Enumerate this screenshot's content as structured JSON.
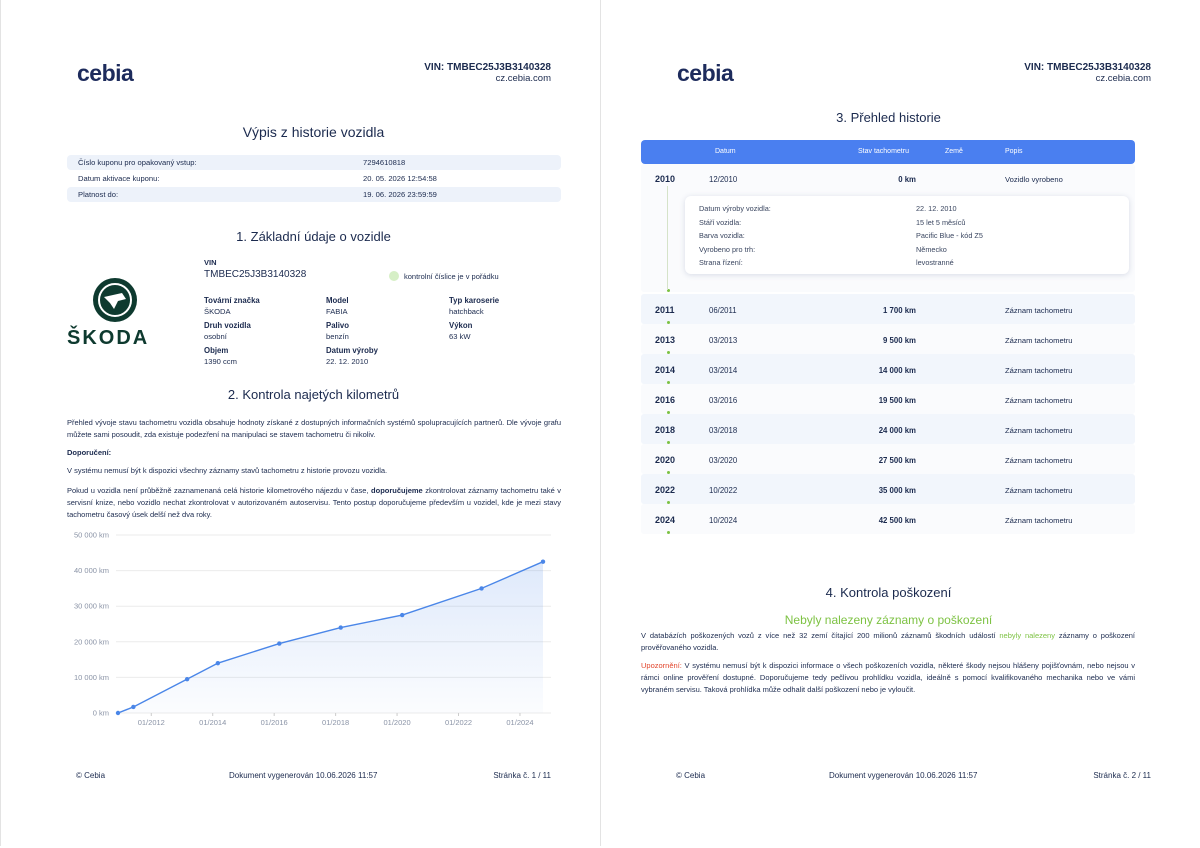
{
  "page1": {
    "logo": "cebia",
    "vin": "VIN: TMBEC25J3B3140328",
    "site": "cz.cebia.com",
    "title": "Výpis z historie vozidla",
    "coupon": [
      {
        "label": "Číslo kuponu pro opakovaný vstup:",
        "value": "7294610818"
      },
      {
        "label": "Datum aktivace kuponu:",
        "value": "20. 05. 2026 12:54:58"
      },
      {
        "label": "Platnost do:",
        "value": "19. 06. 2026 23:59:59"
      }
    ],
    "basic": {
      "title": "1. Základní údaje o vozidle",
      "brand_logo": "ŠKODA",
      "vin_label": "VIN",
      "vin": "TMBEC25J3B3140328",
      "vin_check": "kontrolní číslice je v pořádku",
      "fields": [
        {
          "label": "Tovární značka",
          "value": "ŠKODA"
        },
        {
          "label": "Model",
          "value": "FABIA"
        },
        {
          "label": "Typ karoserie",
          "value": "hatchback"
        },
        {
          "label": "Druh vozidla",
          "value": "osobní"
        },
        {
          "label": "Palivo",
          "value": "benzín"
        },
        {
          "label": "Výkon",
          "value": "63 kW"
        },
        {
          "label": "Objem",
          "value": "1390 ccm"
        },
        {
          "label": "Datum výroby",
          "value": "22. 12. 2010"
        }
      ]
    },
    "mileage": {
      "title": "2. Kontrola najetých kilometrů",
      "intro": "Přehled vývoje stavu tachometru vozidla obsahuje hodnoty získané z dostupných informačních systémů spolupracujících partnerů. Dle vývoje grafu můžete sami posoudit, zda existuje podezření na manipulaci se stavem tachometru či nikoliv.",
      "recommendation_label": "Doporučení:",
      "note": "V systému nemusí být k dispozici všechny záznamy stavů tachometru z historie provozu vozidla.",
      "advice": [
        "Pokud u vozidla není průběžně zaznamenaná celá historie kilometrového nájezdu v čase, ",
        "doporučujeme",
        " zkontrolovat záznamy tachometru také v servisní knize, nebo vozidlo nechat zkontrolovat v autorizovaném autoservisu. Tento postup doporučujeme především u vozidel, kde je mezi stavy tachometru časový úsek delší než dva roky."
      ]
    },
    "footer": {
      "copyright": "© Cebia",
      "generated": "Dokument vygenerován 10.06.2026 11:57",
      "page": "Stránka č. 1 / 11"
    }
  },
  "page2": {
    "logo": "cebia",
    "vin": "VIN: TMBEC25J3B3140328",
    "site": "cz.cebia.com",
    "history": {
      "title": "3. Přehled historie",
      "columns": [
        "Datum",
        "Stav tachometru",
        "Země",
        "Popis"
      ],
      "rows": [
        {
          "year": "2010",
          "date": "12/2010",
          "km": "0 km",
          "description": "Vozidlo vyrobeno"
        },
        {
          "year": "2011",
          "date": "06/2011",
          "km": "1 700 km",
          "description": "Záznam tachometru"
        },
        {
          "year": "2013",
          "date": "03/2013",
          "km": "9 500 km",
          "description": "Záznam tachometru"
        },
        {
          "year": "2014",
          "date": "03/2014",
          "km": "14 000 km",
          "description": "Záznam tachometru"
        },
        {
          "year": "2016",
          "date": "03/2016",
          "km": "19 500 km",
          "description": "Záznam tachometru"
        },
        {
          "year": "2018",
          "date": "03/2018",
          "km": "24 000 km",
          "description": "Záznam tachometru"
        },
        {
          "year": "2020",
          "date": "03/2020",
          "km": "27 500 km",
          "description": "Záznam tachometru"
        },
        {
          "year": "2022",
          "date": "10/2022",
          "km": "35 000 km",
          "description": "Záznam tachometru"
        },
        {
          "year": "2024",
          "date": "10/2024",
          "km": "42 500 km",
          "description": "Záznam tachometru"
        }
      ],
      "detail": [
        {
          "label": "Datum výroby vozidla:",
          "value": "22. 12. 2010"
        },
        {
          "label": "Stáří vozidla:",
          "value": "15 let 5 měsíců"
        },
        {
          "label": "Barva vozidla:",
          "value": "Pacific Blue - kód Z5"
        },
        {
          "label": "Vyrobeno pro trh:",
          "value": "Německo"
        },
        {
          "label": "Strana řízení:",
          "value": "levostranné"
        }
      ]
    },
    "damage": {
      "title": "4. Kontrola poškození",
      "heading": "Nebyly nalezeny záznamy o poškození",
      "text": [
        "V databázích poškozených vozů z více než 32 zemí čítající 200 milionů záznamů škodních událostí ",
        "nebyly nalezeny",
        " záznamy o poškození prověřovaného vozidla."
      ],
      "warning": [
        "Upozornění:",
        " V systému nemusí být k dispozici informace o všech poškozeních vozidla, některé škody nejsou hlášeny pojišťovnám, nebo nejsou v rámci online prověření dostupné. Doporučujeme tedy pečlivou prohlídku vozidla, ideálně s pomocí kvalifikovaného mechanika nebo ve vámi vybraném servisu. Taková prohlídka může odhalit další poškození nebo je vyloučit."
      ]
    },
    "footer": {
      "copyright": "© Cebia",
      "generated": "Dokument vygenerován 10.06.2026 11:57",
      "page": "Stránka č. 2 / 11"
    }
  },
  "chart_data": {
    "type": "line",
    "x": [
      "2010-12",
      "2011-06",
      "2013-03",
      "2014-03",
      "2016-03",
      "2018-03",
      "2020-03",
      "2022-10",
      "2024-10"
    ],
    "values": [
      0,
      1700,
      9500,
      14000,
      19500,
      24000,
      27500,
      35000,
      42500
    ],
    "color": "#4a86e8",
    "xlim": [
      "2010-12",
      "2024-10"
    ],
    "ylim": [
      0,
      50000
    ],
    "xticks": [
      {
        "value": "2012-01",
        "label": "01/2012"
      },
      {
        "value": "2014-01",
        "label": "01/2014"
      },
      {
        "value": "2016-01",
        "label": "01/2016"
      },
      {
        "value": "2018-01",
        "label": "01/2018"
      },
      {
        "value": "2020-01",
        "label": "01/2020"
      },
      {
        "value": "2022-01",
        "label": "01/2022"
      },
      {
        "value": "2024-01",
        "label": "01/2024"
      }
    ],
    "yticks": [
      {
        "value": 0,
        "label": "0 km"
      },
      {
        "value": 10000,
        "label": "10 000 km"
      },
      {
        "value": 20000,
        "label": "20 000 km"
      },
      {
        "value": 30000,
        "label": "30 000 km"
      },
      {
        "value": 40000,
        "label": "40 000 km"
      },
      {
        "value": 50000,
        "label": "50 000 km"
      }
    ],
    "grid": true
  }
}
